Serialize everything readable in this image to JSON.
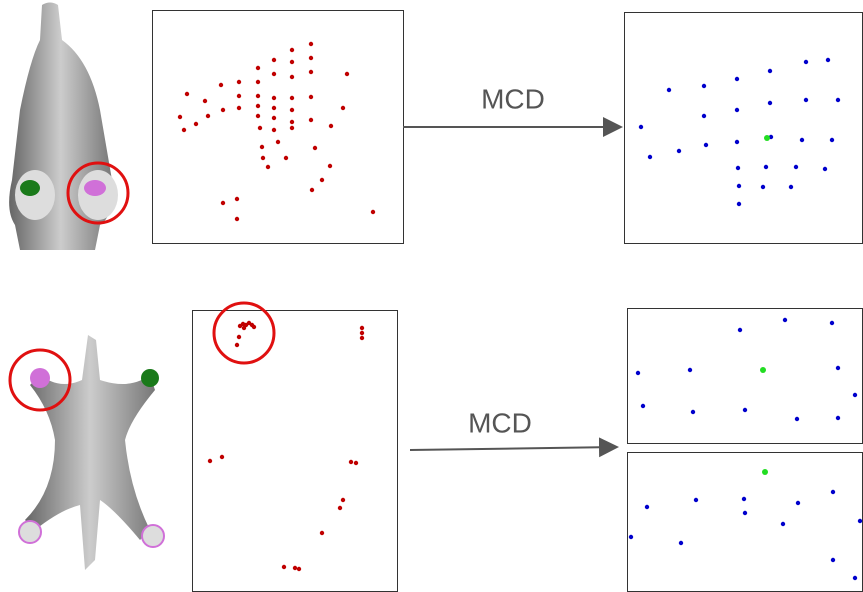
{
  "arrows": [
    {
      "label": "MCD"
    },
    {
      "label": "MCD"
    }
  ]
}
